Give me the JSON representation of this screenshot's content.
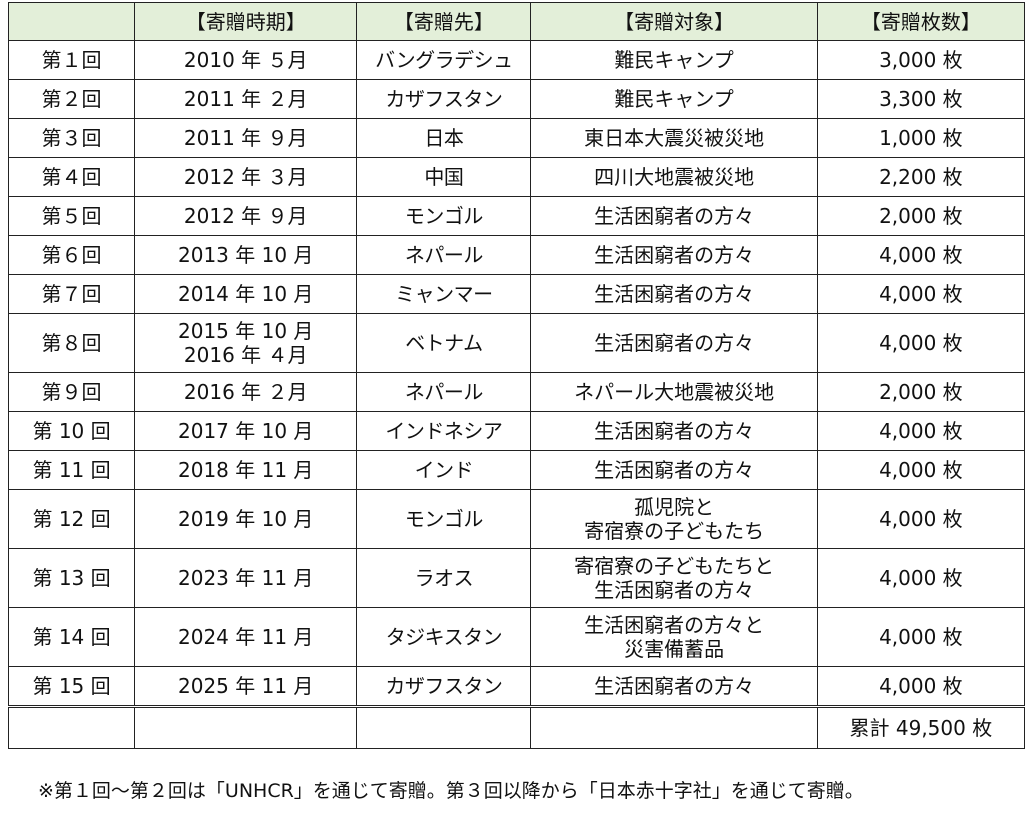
{
  "table": {
    "headers": [
      "",
      "【寄贈時期】",
      "【寄贈先】",
      "【寄贈対象】",
      "【寄贈枚数】"
    ],
    "rows": [
      {
        "round": "第１回",
        "period": [
          "2010 年 ５月"
        ],
        "destination": "バングラデシュ",
        "target": [
          "難民キャンプ"
        ],
        "count": "3,000 枚"
      },
      {
        "round": "第２回",
        "period": [
          "2011 年 ２月"
        ],
        "destination": "カザフスタン",
        "target": [
          "難民キャンプ"
        ],
        "count": "3,300 枚"
      },
      {
        "round": "第３回",
        "period": [
          "2011 年 ９月"
        ],
        "destination": "日本",
        "target": [
          "東日本大震災被災地"
        ],
        "count": "1,000 枚"
      },
      {
        "round": "第４回",
        "period": [
          "2012 年 ３月"
        ],
        "destination": "中国",
        "target": [
          "四川大地震被災地"
        ],
        "count": "2,200 枚"
      },
      {
        "round": "第５回",
        "period": [
          "2012 年 ９月"
        ],
        "destination": "モンゴル",
        "target": [
          "生活困窮者の方々"
        ],
        "count": "2,000 枚"
      },
      {
        "round": "第６回",
        "period": [
          "2013 年 10 月"
        ],
        "destination": "ネパール",
        "target": [
          "生活困窮者の方々"
        ],
        "count": "4,000 枚"
      },
      {
        "round": "第７回",
        "period": [
          "2014 年 10 月"
        ],
        "destination": "ミャンマー",
        "target": [
          "生活困窮者の方々"
        ],
        "count": "4,000 枚"
      },
      {
        "round": "第８回",
        "period": [
          "2015 年 10 月",
          "2016 年 ４月"
        ],
        "destination": "ベトナム",
        "target": [
          "生活困窮者の方々"
        ],
        "count": "4,000 枚"
      },
      {
        "round": "第９回",
        "period": [
          "2016 年 ２月"
        ],
        "destination": "ネパール",
        "target": [
          "ネパール大地震被災地"
        ],
        "count": "2,000 枚"
      },
      {
        "round": "第 10 回",
        "period": [
          "2017 年 10 月"
        ],
        "destination": "インドネシア",
        "target": [
          "生活困窮者の方々"
        ],
        "count": "4,000 枚"
      },
      {
        "round": "第 11 回",
        "period": [
          "2018 年 11 月"
        ],
        "destination": "インド",
        "target": [
          "生活困窮者の方々"
        ],
        "count": "4,000 枚"
      },
      {
        "round": "第 12 回",
        "period": [
          "2019 年 10 月"
        ],
        "destination": "モンゴル",
        "target": [
          "孤児院と",
          "寄宿寮の子どもたち"
        ],
        "count": "4,000 枚"
      },
      {
        "round": "第 13 回",
        "period": [
          "2023 年 11 月"
        ],
        "destination": "ラオス",
        "target": [
          "寄宿寮の子どもたちと",
          "生活困窮者の方々"
        ],
        "count": "4,000 枚"
      },
      {
        "round": "第 14 回",
        "period": [
          "2024 年 11 月"
        ],
        "destination": "タジキスタン",
        "target": [
          "生活困窮者の方々と",
          "災害備蓄品"
        ],
        "count": "4,000 枚"
      },
      {
        "round": "第 15 回",
        "period": [
          "2025 年 11 月"
        ],
        "destination": "カザフスタン",
        "target": [
          "生活困窮者の方々"
        ],
        "count": "4,000 枚"
      }
    ],
    "total": "累計 49,500 枚"
  },
  "footnote": "※第１回～第２回は「UNHCR」を通じて寄贈。第３回以降から「日本赤十字社」を通じて寄贈。",
  "colors": {
    "header_background": "#e3efd9",
    "border": "#222222",
    "text": "#111111"
  }
}
